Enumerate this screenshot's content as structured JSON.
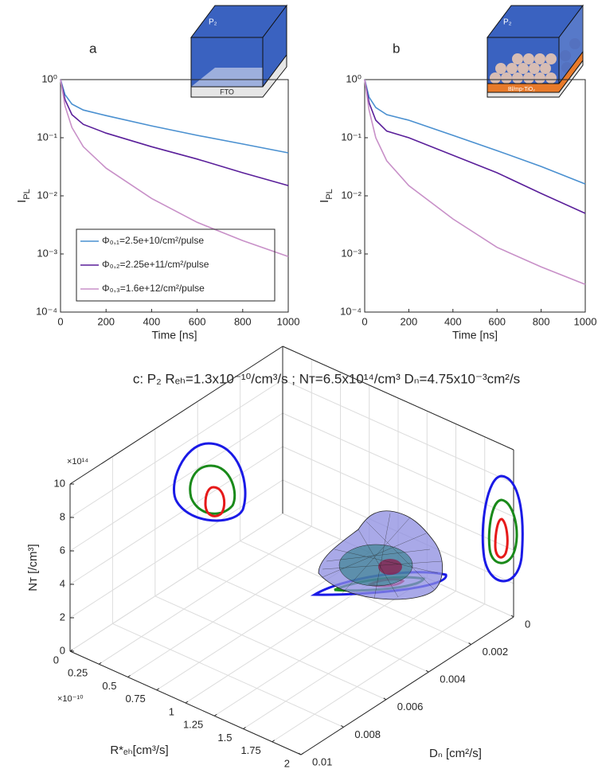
{
  "chart_data": [
    {
      "type": "line",
      "panel_label": "a",
      "inset_labels": [
        "P₂",
        "FTO"
      ],
      "xlabel": "Time [ns]",
      "ylabel": "I",
      "ylabel_sub": "PL",
      "x": [
        0,
        20,
        50,
        100,
        200,
        400,
        600,
        800,
        1000
      ],
      "series": [
        {
          "name": "Φ₀,₁=2.5e+10/cm²/pulse",
          "color": "#4a90d0",
          "values": [
            1,
            0.55,
            0.38,
            0.3,
            0.24,
            0.16,
            0.11,
            0.078,
            0.055
          ]
        },
        {
          "name": "Φ₀,₂=2.25e+11/cm²/pulse",
          "color": "#5a1f9a",
          "values": [
            1,
            0.45,
            0.25,
            0.17,
            0.12,
            0.07,
            0.043,
            0.025,
            0.015
          ]
        },
        {
          "name": "Φ₀,₃=1.6e+12/cm²/pulse",
          "color": "#c890c8",
          "values": [
            1,
            0.35,
            0.15,
            0.07,
            0.03,
            0.009,
            0.0035,
            0.0017,
            0.0009
          ]
        }
      ],
      "xlim": [
        0,
        1000
      ],
      "xticks": [
        0,
        200,
        400,
        600,
        800,
        1000
      ],
      "ylim": [
        0.0001,
        1
      ],
      "yscale": "log",
      "yticks": [
        {
          "value": 0.0001,
          "label": "10⁻⁴"
        },
        {
          "value": 0.001,
          "label": "10⁻³"
        },
        {
          "value": 0.01,
          "label": "10⁻²"
        },
        {
          "value": 0.1,
          "label": "10⁻¹"
        },
        {
          "value": 1,
          "label": "10⁰"
        }
      ],
      "legend": "lower left"
    },
    {
      "type": "line",
      "panel_label": "b",
      "inset_labels": [
        "P₂",
        "Bl/mp-TiO₂"
      ],
      "xlabel": "Time [ns]",
      "ylabel": "I",
      "ylabel_sub": "PL",
      "x": [
        0,
        20,
        50,
        100,
        200,
        400,
        600,
        800,
        1000
      ],
      "series": [
        {
          "color": "#4a90d0",
          "values": [
            1,
            0.5,
            0.33,
            0.25,
            0.2,
            0.11,
            0.06,
            0.032,
            0.016
          ]
        },
        {
          "color": "#5a1f9a",
          "values": [
            1,
            0.4,
            0.2,
            0.13,
            0.1,
            0.05,
            0.025,
            0.011,
            0.005
          ]
        },
        {
          "color": "#c890c8",
          "values": [
            1,
            0.3,
            0.1,
            0.04,
            0.015,
            0.004,
            0.0013,
            0.0006,
            0.0003
          ]
        }
      ],
      "xlim": [
        0,
        1000
      ],
      "xticks": [
        0,
        200,
        400,
        600,
        800,
        1000
      ],
      "ylim": [
        0.0001,
        1
      ],
      "yscale": "log",
      "yticks": [
        {
          "value": 0.0001,
          "label": "10⁻⁴"
        },
        {
          "value": 0.001,
          "label": "10⁻³"
        },
        {
          "value": 0.01,
          "label": "10⁻²"
        },
        {
          "value": 0.1,
          "label": "10⁻¹"
        },
        {
          "value": 1,
          "label": "10⁰"
        }
      ]
    },
    {
      "type": "contour3d",
      "title": "c: P₂  Rₑₕ=1.3x10⁻¹⁰/cm³/s ; Nᴛ=6.5x10¹⁴/cm³ Dₙ=4.75x10⁻³cm²/s",
      "xlabel": "R*ₑₕ[cm³/s]",
      "xexponent": "×10⁻¹⁰",
      "xlim": [
        0,
        2
      ],
      "xticks": [
        0,
        0.25,
        0.5,
        0.75,
        1,
        1.25,
        1.5,
        1.75,
        2
      ],
      "ylabel": "Dₙ [cm²/s]",
      "ylim": [
        0,
        0.01
      ],
      "yticks": [
        0,
        0.002,
        0.004,
        0.006,
        0.008,
        0.01
      ],
      "zlabel": "Nᴛ [/cm³]",
      "zexponent": "×10¹⁴",
      "zlim": [
        0,
        10
      ],
      "zticks": [
        0,
        2,
        4,
        6,
        8,
        10
      ],
      "grid": true
    }
  ]
}
